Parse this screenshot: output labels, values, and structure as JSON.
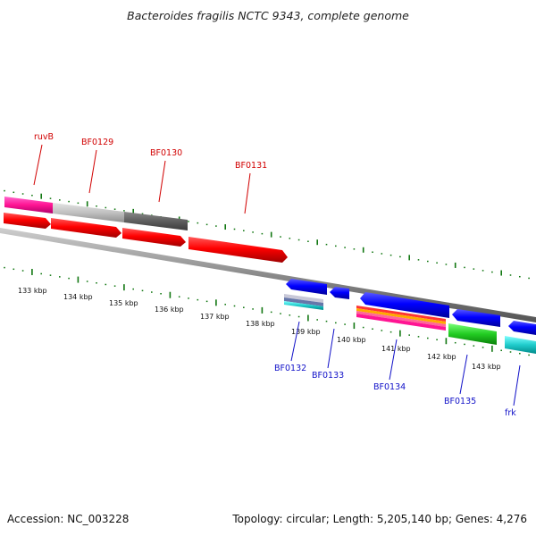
{
  "title": "Bacteroides fragilis NCTC 9343, complete genome",
  "footer": {
    "accession": "Accession: NC_003228",
    "summary": "Topology: circular; Length: 5,205,140 bp; Genes: 4,276"
  },
  "kbp_labels": [
    "133 kbp",
    "134 kbp",
    "135 kbp",
    "136 kbp",
    "137 kbp",
    "138 kbp",
    "139 kbp",
    "140 kbp",
    "141 kbp",
    "142 kbp",
    "143 kbp"
  ],
  "top_gene_labels": [
    "ruvB",
    "BF0129",
    "BF0130",
    "BF0131"
  ],
  "bottom_gene_labels": [
    "BF0132",
    "BF0133",
    "BF0134",
    "BF0135",
    "frk"
  ],
  "colors": {
    "forward_gene": "#ff0000",
    "reverse_gene": "#0000ff",
    "top_label": "#d10000",
    "bottom_label": "#1010c8",
    "tick": "#117711",
    "backbone": "#888888"
  }
}
